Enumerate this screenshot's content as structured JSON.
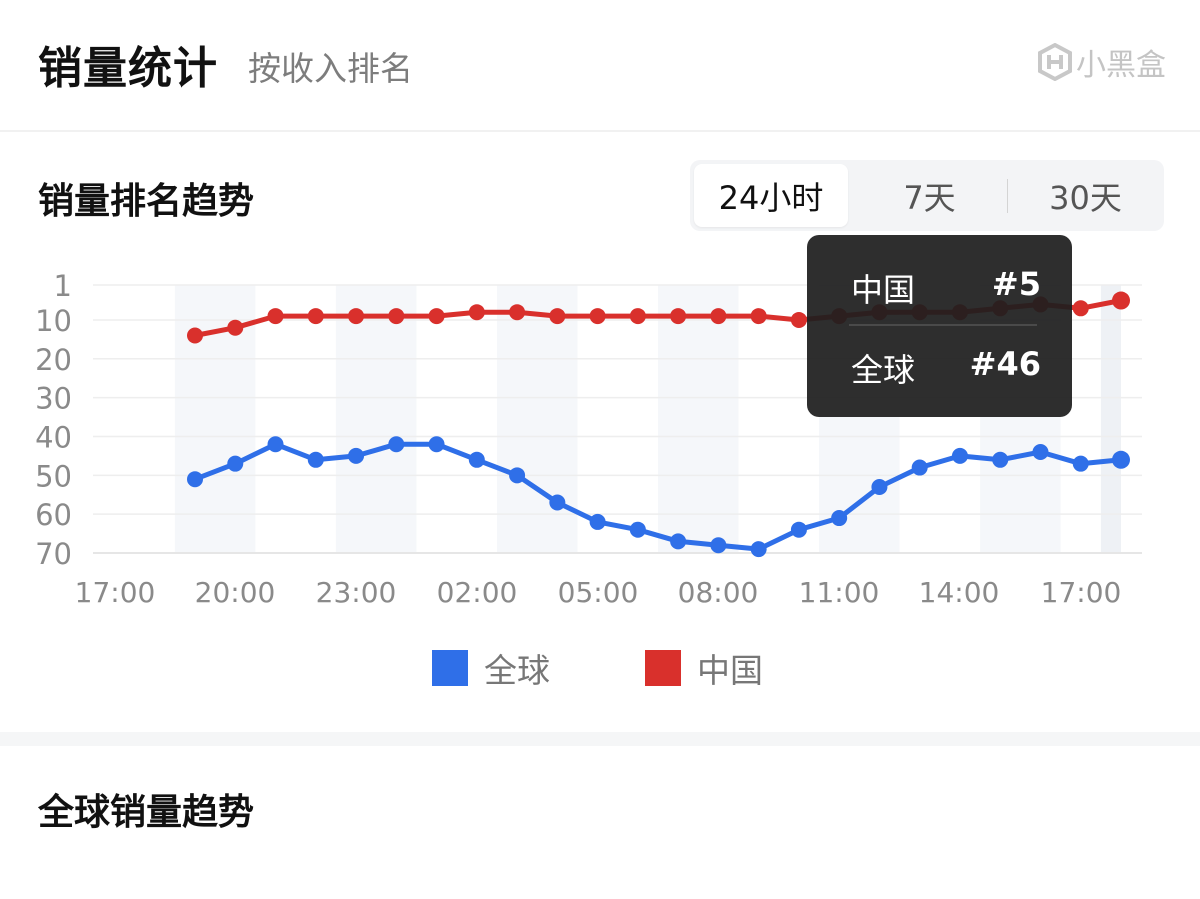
{
  "header": {
    "title": "销量统计",
    "subtitle": "按收入排名",
    "logo_text": "小黑盒"
  },
  "rank_section": {
    "title": "销量排名趋势",
    "tabs": [
      {
        "label": "24小时",
        "active": true
      },
      {
        "label": "7天",
        "active": false
      },
      {
        "label": "30天",
        "active": false
      }
    ]
  },
  "tooltip": {
    "rows": [
      {
        "label": "中国",
        "value": "#5"
      },
      {
        "label": "全球",
        "value": "#46"
      }
    ]
  },
  "chart_data": {
    "type": "line",
    "y_ticks": [
      "1",
      "10",
      "20",
      "30",
      "40",
      "50",
      "60",
      "70"
    ],
    "y_inverted": true,
    "ylim": [
      1,
      70
    ],
    "x_tick_labels": [
      "17:00",
      "20:00",
      "23:00",
      "02:00",
      "05:00",
      "08:00",
      "11:00",
      "14:00",
      "17:00"
    ],
    "x_hours": [
      "19:00",
      "20:00",
      "21:00",
      "22:00",
      "23:00",
      "00:00",
      "01:00",
      "02:00",
      "03:00",
      "04:00",
      "05:00",
      "06:00",
      "07:00",
      "08:00",
      "09:00",
      "10:00",
      "11:00",
      "12:00",
      "13:00",
      "14:00",
      "15:00",
      "16:00",
      "17:00",
      "18:00"
    ],
    "series": [
      {
        "name": "全球",
        "color": "#2f6fe8",
        "values": [
          51,
          47,
          42,
          46,
          45,
          42,
          42,
          46,
          50,
          57,
          62,
          64,
          67,
          68,
          69,
          64,
          61,
          53,
          48,
          45,
          46,
          44,
          47,
          46
        ]
      },
      {
        "name": "中国",
        "color": "#d9302c",
        "values": [
          14,
          12,
          9,
          9,
          9,
          9,
          9,
          8,
          8,
          9,
          9,
          9,
          9,
          9,
          9,
          10,
          9,
          8,
          8,
          8,
          7,
          6,
          7,
          5
        ]
      }
    ],
    "grid": true,
    "legend": "bottom-center"
  },
  "legend": [
    {
      "label": "全球",
      "color": "#2f6fe8"
    },
    {
      "label": "中国",
      "color": "#d9302c"
    }
  ],
  "global_section": {
    "title": "全球销量趋势"
  }
}
